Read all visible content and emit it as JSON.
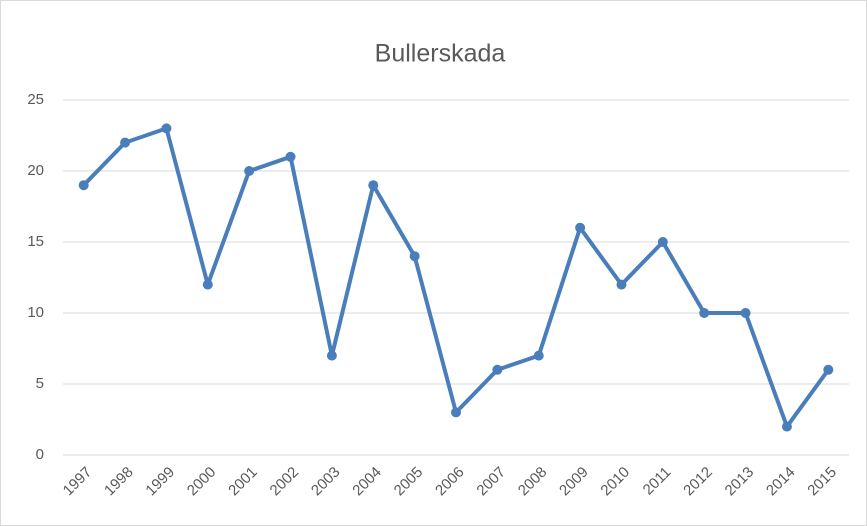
{
  "chart_data": {
    "type": "line",
    "title": "Bullerskada",
    "categories": [
      "1997",
      "1998",
      "1999",
      "2000",
      "2001",
      "2002",
      "2003",
      "2004",
      "2005",
      "2006",
      "2007",
      "2008",
      "2009",
      "2010",
      "2011",
      "2012",
      "2013",
      "2014",
      "2015"
    ],
    "values": [
      19,
      22,
      23,
      12,
      20,
      21,
      7,
      19,
      14,
      3,
      6,
      7,
      16,
      12,
      15,
      10,
      10,
      2,
      6
    ],
    "color": "#4a7ebb",
    "ylim": [
      0,
      25
    ],
    "yticks": [
      0,
      5,
      10,
      15,
      20,
      25
    ],
    "grid": true
  }
}
